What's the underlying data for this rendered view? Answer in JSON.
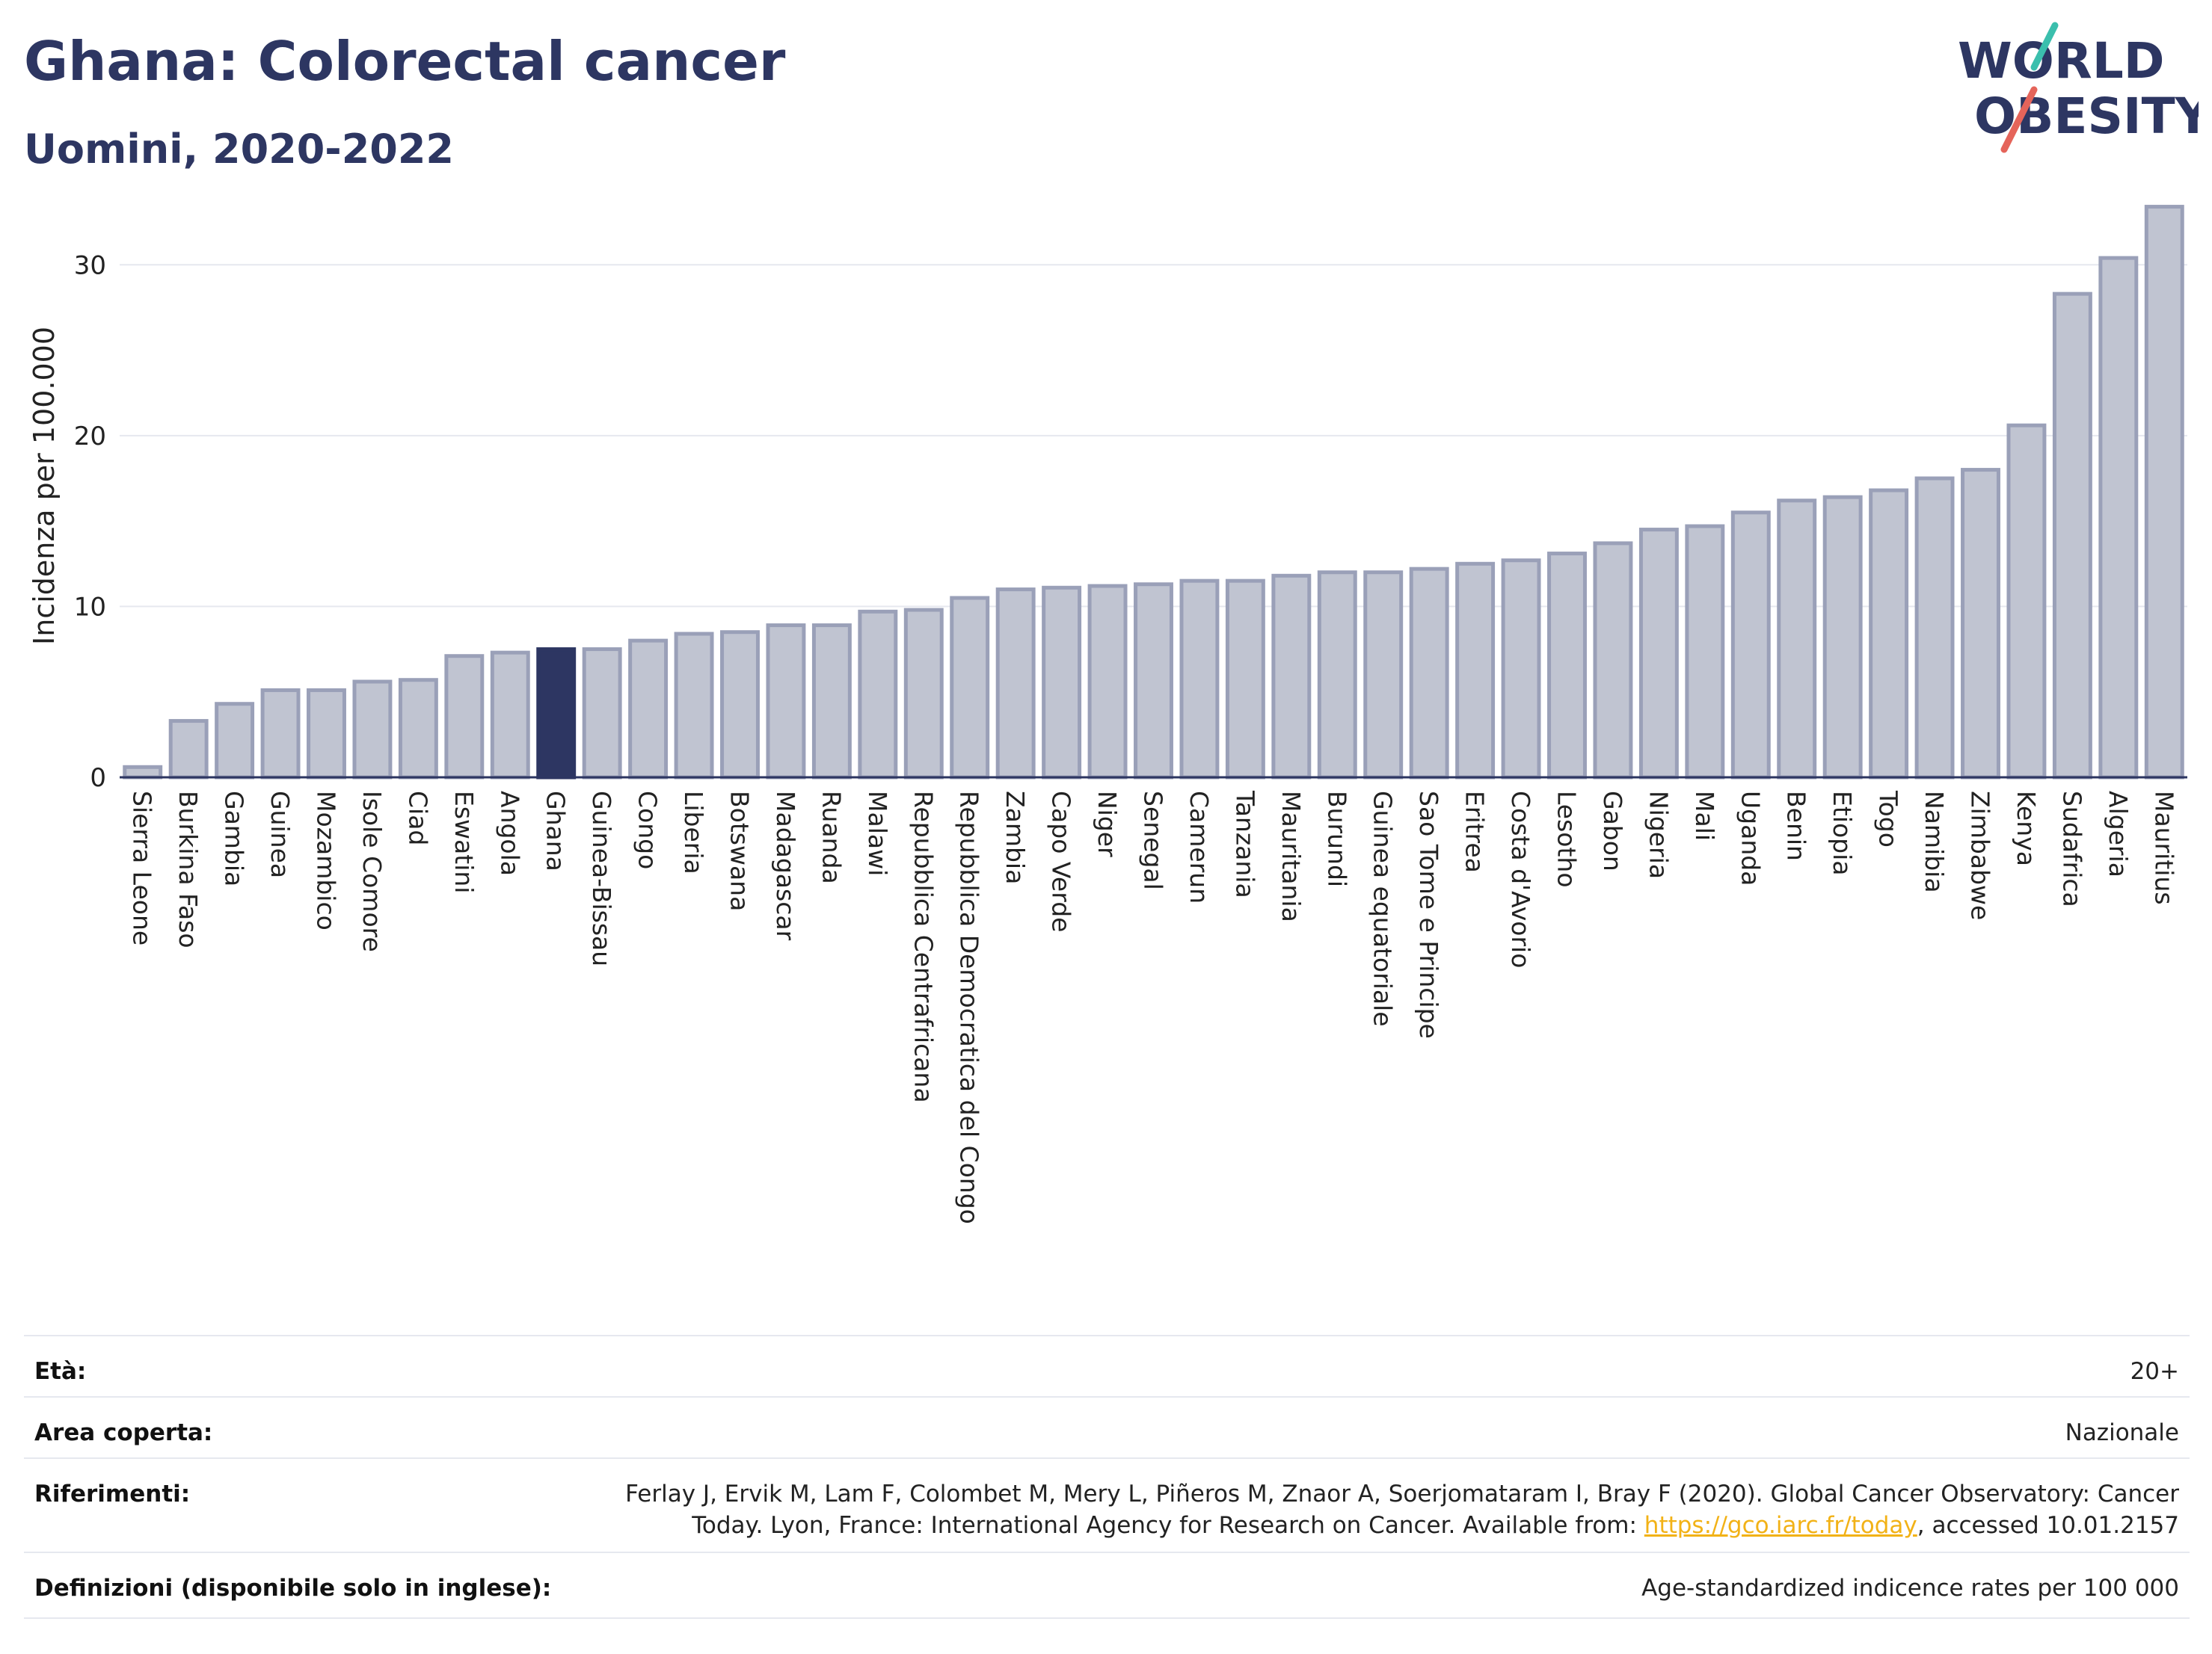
{
  "header": {
    "title": "Ghana: Colorectal cancer",
    "subtitle": "Uomini, 2020-2022"
  },
  "logo": {
    "line1": "WORLD",
    "line2": "OBESITY",
    "accent_teal": "#3bbfad",
    "accent_red": "#e5645a",
    "text_color": "#2d3662"
  },
  "colors": {
    "highlight": "#2d3662",
    "bar_fill": "#c0c4d1",
    "bar_stroke": "#9aa0b8",
    "grid": "#e6e8ef"
  },
  "chart_data": {
    "type": "bar",
    "ylabel": "Incidenza per 100.000",
    "ylim": [
      0,
      35
    ],
    "yticks": [
      0,
      10,
      20,
      30
    ],
    "highlight": "Ghana",
    "grid": true,
    "categories": [
      "Sierra Leone",
      "Burkina Faso",
      "Gambia",
      "Guinea",
      "Mozambico",
      "Isole Comore",
      "Ciad",
      "Eswatini",
      "Angola",
      "Ghana",
      "Guinea-Bissau",
      "Congo",
      "Liberia",
      "Botswana",
      "Madagascar",
      "Ruanda",
      "Malawi",
      "Repubblica Centrafricana",
      "Repubblica Democratica del Congo",
      "Zambia",
      "Capo Verde",
      "Niger",
      "Senegal",
      "Camerun",
      "Tanzania",
      "Mauritania",
      "Burundi",
      "Guinea equatoriale",
      "Sao Tome e Principe",
      "Eritrea",
      "Costa d'Avorio",
      "Lesotho",
      "Gabon",
      "Nigeria",
      "Mali",
      "Uganda",
      "Benin",
      "Etiopia",
      "Togo",
      "Namibia",
      "Zimbabwe",
      "Kenya",
      "Sudafrica",
      "Algeria",
      "Mauritius"
    ],
    "values": [
      0.6,
      3.3,
      4.3,
      5.1,
      5.1,
      5.6,
      5.7,
      7.1,
      7.3,
      7.5,
      7.5,
      8.0,
      8.4,
      8.5,
      8.9,
      8.9,
      9.7,
      9.8,
      10.5,
      11.0,
      11.1,
      11.2,
      11.3,
      11.5,
      11.5,
      11.8,
      12.0,
      12.0,
      12.2,
      12.5,
      12.7,
      13.1,
      13.7,
      14.5,
      14.7,
      15.5,
      16.2,
      16.4,
      16.8,
      17.5,
      18.0,
      20.6,
      28.3,
      30.4,
      33.4
    ]
  },
  "meta": {
    "age_label": "Età:",
    "age_value": "20+",
    "area_label": "Area coperta:",
    "area_value": "Nazionale",
    "ref_label": "Riferimenti:",
    "ref_line1": "Ferlay J, Ervik M, Lam F, Colombet M, Mery L, Piñeros M, Znaor A, Soerjomataram I, Bray F (2020). Global Cancer Observatory: Cancer",
    "ref_line2_pre": "Today. Lyon, France: International Agency for Research on Cancer. Available from: ",
    "ref_link": "https://gco.iarc.fr/today",
    "ref_line2_post": ", accessed 10.01.2157",
    "def_label": "Definizioni (disponibile solo in inglese):",
    "def_value": "Age-standardized indicence rates per 100 000"
  }
}
